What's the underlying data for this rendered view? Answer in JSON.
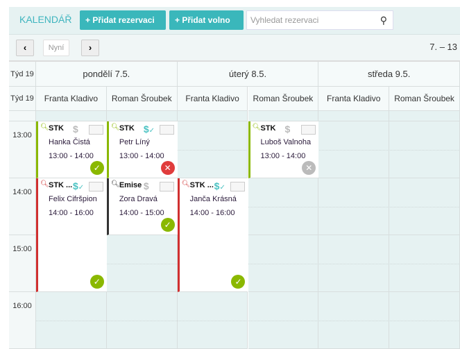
{
  "toolbar": {
    "title": "KALENDÁŘ",
    "add_reservation": "+ Přidat rezervaci",
    "add_free": "+ Přidat volno",
    "search_placeholder": "Vyhledat rezervaci"
  },
  "nav": {
    "prev": "‹",
    "today": "Nyní",
    "next": "›",
    "range": "7. – 13"
  },
  "week_label": "Týd 19",
  "days": [
    "pondělí 7.5.",
    "úterý 8.5.",
    "středa 9.5."
  ],
  "staff": [
    "Franta Kladivo",
    "Roman Šroubek",
    "Franta Kladivo",
    "Roman Šroubek",
    "Franta Kladivo",
    "Roman Šroubek"
  ],
  "hours": [
    "13:00",
    "14:00",
    "15:00",
    "16:00"
  ],
  "colors": {
    "accent": "#3ab7bb",
    "confirmed": "#8ab800",
    "cancelled": "#e03c3c",
    "pending": "#bbbbbb",
    "paid": "#4cc3c3"
  },
  "events": [
    {
      "title": "STK",
      "name": "Hanka Čistá",
      "time": "13:00 - 14:00",
      "col": 0,
      "start": 13,
      "end": 14,
      "border": "#8ab800",
      "paid": false,
      "status": "confirmed"
    },
    {
      "title": "STK",
      "name": "Petr Líný",
      "time": "13:00 - 14:00",
      "col": 1,
      "start": 13,
      "end": 14,
      "border": "#8ab800",
      "paid": true,
      "status": "cancelled"
    },
    {
      "title": "STK",
      "name": "Luboš Valnoha",
      "time": "13:00 - 14:00",
      "col": 3,
      "start": 13,
      "end": 14,
      "border": "#8ab800",
      "paid": false,
      "status": "pending"
    },
    {
      "title": "STK ...",
      "name": "Felix Cifršpion",
      "time": "14:00 - 16:00",
      "col": 0,
      "start": 14,
      "end": 16,
      "border": "#d03030",
      "paid": true,
      "status": "confirmed"
    },
    {
      "title": "Emise",
      "name": "Zora Dravá",
      "time": "14:00 - 15:00",
      "col": 1,
      "start": 14,
      "end": 15,
      "border": "#333333",
      "paid": false,
      "status": "confirmed"
    },
    {
      "title": "STK ...",
      "name": "Janča Krásná",
      "time": "14:00 - 16:00",
      "col": 2,
      "start": 14,
      "end": 16,
      "border": "#d03030",
      "paid": true,
      "status": "confirmed"
    }
  ]
}
